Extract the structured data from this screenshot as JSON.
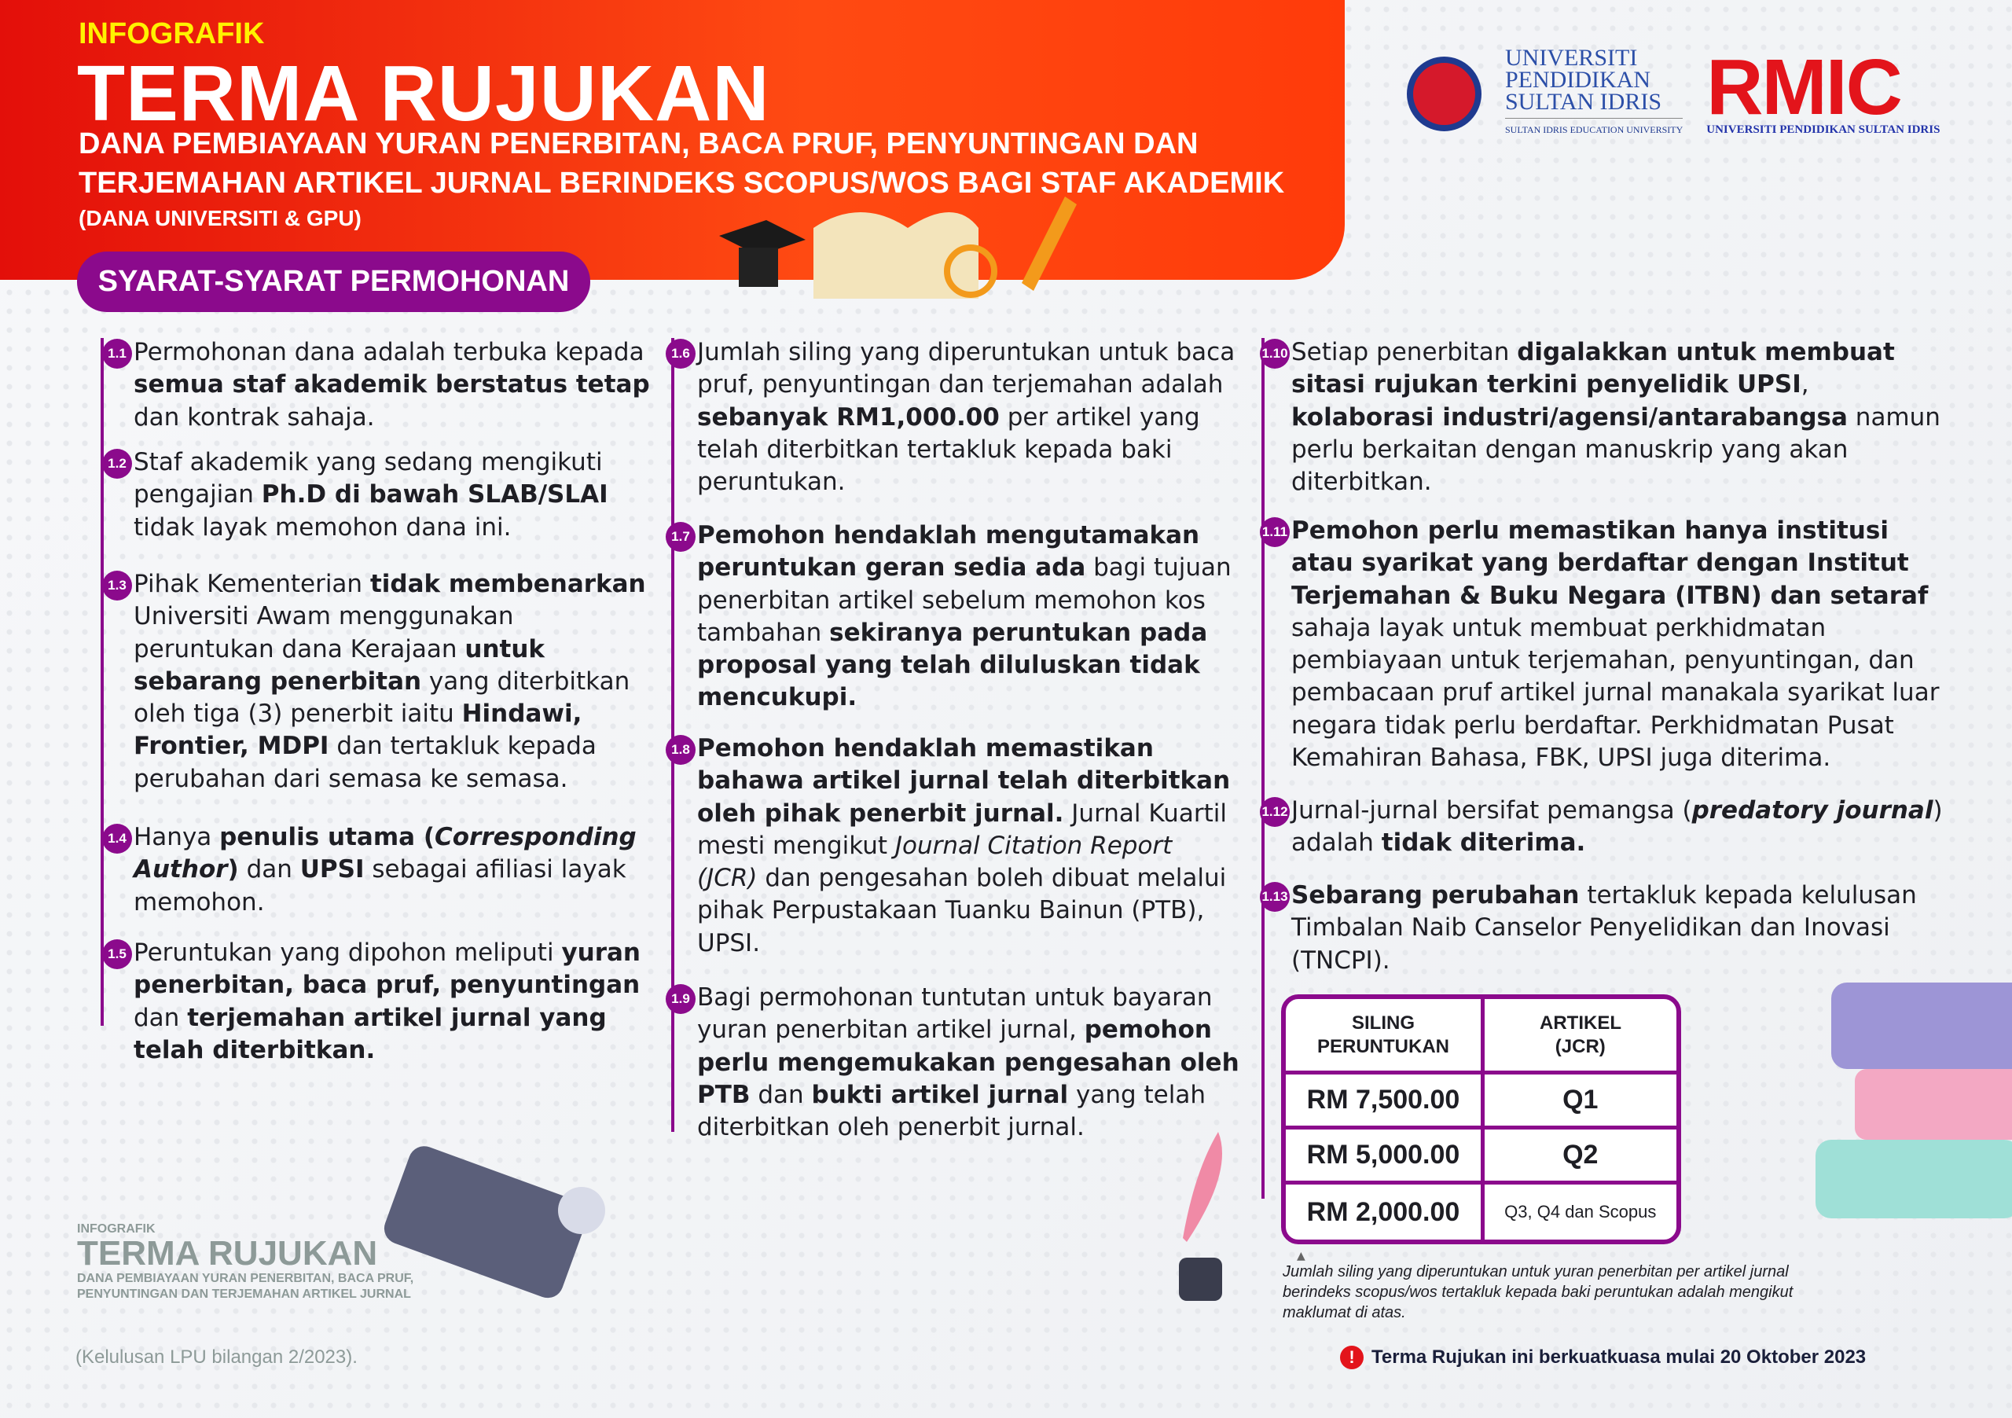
{
  "header": {
    "kicker": "INFOGRAFIK",
    "title": "TERMA RUJUKAN",
    "subtitle": "DANA PEMBIAYAAN YURAN PENERBITAN, BACA PRUF, PENYUNTINGAN DAN TERJEMAHAN ARTIKEL JURNAL BERINDEKS SCOPUS/WOS BAGI STAF AKADEMIK",
    "subtitle2": "(DANA UNIVERSITI & GPU)",
    "section": "SYARAT-SYARAT PERMOHONAN"
  },
  "logos": {
    "upsi": [
      "UNIVERSITI",
      "PENDIDIKAN",
      "SULTAN IDRIS"
    ],
    "upsi_en": "SULTAN IDRIS EDUCATION UNIVERSITY",
    "rmic": "RMIC",
    "rmic_sub": "UNIVERSITI PENDIDIKAN SULTAN IDRIS"
  },
  "colors": {
    "primary": "#8b0a8c",
    "header_red": "#f2280e",
    "kicker_yellow": "#fff200"
  },
  "items": [
    {
      "n": "1.1",
      "s": [
        [
          "Permohonan dana adalah terbuka kepada ",
          0
        ],
        [
          "semua staf akademik berstatus tetap",
          1
        ],
        [
          " dan kontrak sahaja.",
          0
        ]
      ]
    },
    {
      "n": "1.2",
      "s": [
        [
          "Staf akademik yang sedang mengikuti pengajian ",
          0
        ],
        [
          "Ph.D di bawah SLAB/SLAI",
          1
        ],
        [
          " tidak layak memohon dana ini.",
          0
        ]
      ]
    },
    {
      "n": "1.3",
      "s": [
        [
          "Pihak Kementerian ",
          0
        ],
        [
          "tidak membenarkan",
          1
        ],
        [
          " Universiti Awam menggunakan peruntukan dana Kerajaan ",
          0
        ],
        [
          "untuk sebarang penerbitan",
          1
        ],
        [
          " yang diterbitkan oleh tiga (3) penerbit iaitu ",
          0
        ],
        [
          "Hindawi, Frontier, MDPI",
          1
        ],
        [
          " dan tertakluk kepada perubahan dari semasa ke semasa.",
          0
        ]
      ]
    },
    {
      "n": "1.4",
      "s": [
        [
          "Hanya ",
          0
        ],
        [
          "penulis utama (",
          1
        ],
        [
          "Corresponding Author",
          3
        ],
        [
          ")",
          1
        ],
        [
          " dan ",
          0
        ],
        [
          "UPSI",
          1
        ],
        [
          " sebagai afiliasi layak memohon.",
          0
        ]
      ]
    },
    {
      "n": "1.5",
      "s": [
        [
          "Peruntukan yang dipohon meliputi ",
          0
        ],
        [
          "yuran penerbitan, baca pruf, penyuntingan",
          1
        ],
        [
          " dan ",
          0
        ],
        [
          "terjemahan artikel jurnal yang telah diterbitkan.",
          1
        ]
      ]
    },
    {
      "n": "1.6",
      "s": [
        [
          "Jumlah siling yang diperuntukan untuk baca pruf, penyuntingan dan terjemahan adalah ",
          0
        ],
        [
          "sebanyak RM1,000.00",
          1
        ],
        [
          " per artikel yang telah diterbitkan tertakluk kepada baki peruntukan.",
          0
        ]
      ]
    },
    {
      "n": "1.7",
      "s": [
        [
          "Pemohon hendaklah mengutamakan peruntukan geran sedia ada",
          1
        ],
        [
          " bagi tujuan penerbitan artikel sebelum memohon kos tambahan ",
          0
        ],
        [
          "sekiranya peruntukan pada proposal yang telah diluluskan tidak mencukupi.",
          1
        ]
      ]
    },
    {
      "n": "1.8",
      "s": [
        [
          "Pemohon hendaklah memastikan bahawa artikel jurnal telah diterbitkan oleh pihak penerbit jurnal.",
          1
        ],
        [
          " Jurnal Kuartil mesti mengikut ",
          0
        ],
        [
          "Journal Citation Report (JCR)",
          2
        ],
        [
          " dan pengesahan boleh dibuat melalui pihak Perpustakaan Tuanku Bainun (PTB), UPSI.",
          0
        ]
      ]
    },
    {
      "n": "1.9",
      "s": [
        [
          "Bagi permohonan tuntutan untuk bayaran yuran penerbitan artikel jurnal, ",
          0
        ],
        [
          "pemohon perlu mengemukakan pengesahan oleh PTB",
          1
        ],
        [
          " dan ",
          0
        ],
        [
          "bukti artikel jurnal",
          1
        ],
        [
          " yang telah diterbitkan oleh penerbit jurnal.",
          0
        ]
      ]
    },
    {
      "n": "1.10",
      "s": [
        [
          "Setiap penerbitan ",
          0
        ],
        [
          "digalakkan untuk membuat sitasi rujukan terkini penyelidik UPSI",
          1
        ],
        [
          ", ",
          0
        ],
        [
          "kolaborasi industri/agensi/antarabangsa",
          1
        ],
        [
          " namun perlu berkaitan dengan manuskrip yang akan diterbitkan.",
          0
        ]
      ]
    },
    {
      "n": "1.11",
      "s": [
        [
          "Pemohon perlu memastikan hanya institusi atau syarikat yang berdaftar dengan Institut Terjemahan & Buku Negara (ITBN) dan setaraf",
          1
        ],
        [
          " sahaja layak untuk membuat perkhidmatan pembiayaan untuk terjemahan, penyuntingan, dan pembacaan pruf artikel jurnal manakala syarikat luar negara tidak perlu berdaftar. Perkhidmatan Pusat Kemahiran Bahasa, FBK, UPSI juga diterima.",
          0
        ]
      ]
    },
    {
      "n": "1.12",
      "s": [
        [
          "Jurnal-jurnal bersifat pemangsa (",
          0
        ],
        [
          "predatory journal",
          3
        ],
        [
          ") adalah ",
          0
        ],
        [
          "tidak diterima.",
          1
        ]
      ]
    },
    {
      "n": "1.13",
      "s": [
        [
          "Sebarang perubahan",
          1
        ],
        [
          " tertakluk kepada kelulusan Timbalan Naib Canselor Penyelidikan dan Inovasi (TNCPI).",
          0
        ]
      ]
    }
  ],
  "table": {
    "headers": [
      "SILING PERUNTUKAN",
      "ARTIKEL (JCR)"
    ],
    "rows": [
      [
        "RM 7,500.00",
        "Q1"
      ],
      [
        "RM 5,000.00",
        "Q2"
      ],
      [
        "RM 2,000.00",
        "Q3, Q4 dan Scopus"
      ]
    ]
  },
  "note": "Jumlah siling yang diperuntukan untuk yuran penerbitan per artikel jurnal berindeks scopus/wos tertakluk kepada baki peruntukan adalah mengikut maklumat di atas.",
  "effective": "Terma Rujukan ini berkuatkuasa mulai 20 Oktober 2023",
  "footer": {
    "kicker": "INFOGRAFIK",
    "title": "TERMA RUJUKAN",
    "sub1": "DANA PEMBIAYAAN YURAN PENERBITAN, BACA PRUF,",
    "sub2": "PENYUNTINGAN DAN TERJEMAHAN ARTIKEL JURNAL",
    "approval": "(Kelulusan LPU bilangan 2/2023)."
  }
}
